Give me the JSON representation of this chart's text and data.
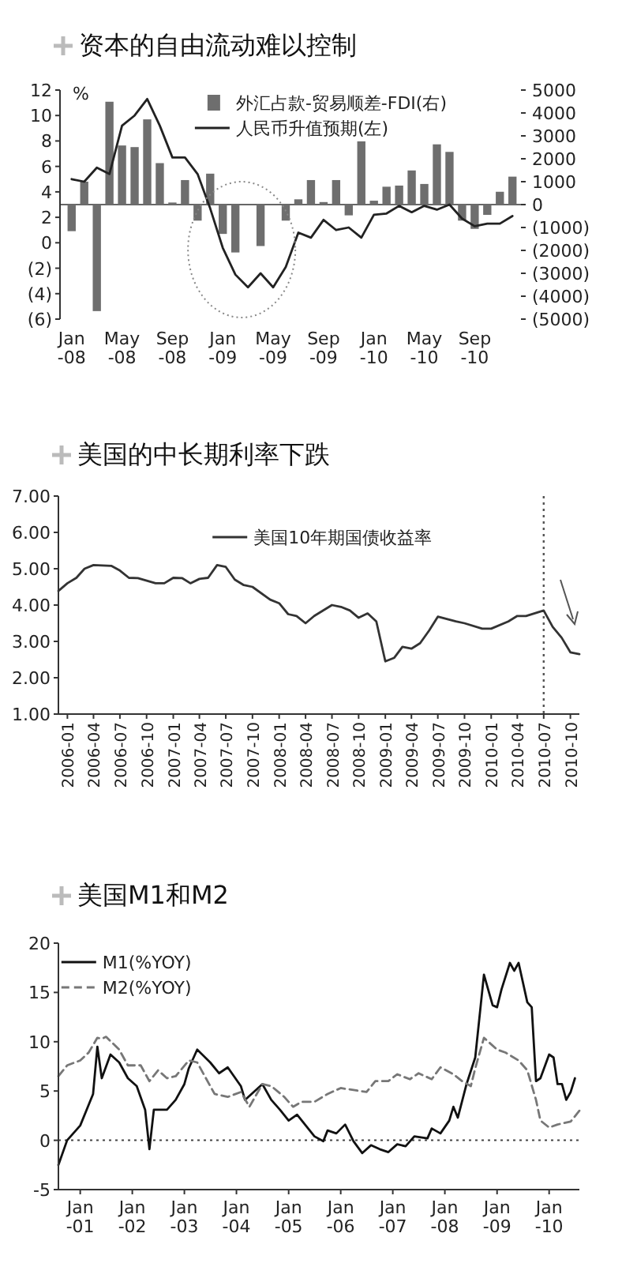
{
  "chart_data": [
    {
      "type": "bar",
      "title": "资本的自由流动难以控制",
      "ylabel": "%",
      "legend": "top",
      "categories": [
        "Jan\n-08",
        null,
        null,
        null,
        "May\n-08",
        null,
        null,
        null,
        "Sep\n-08",
        null,
        null,
        null,
        "Jan\n-09",
        null,
        null,
        null,
        "May\n-09",
        null,
        null,
        null,
        "Sep\n-09",
        null,
        null,
        null,
        "Jan\n-10",
        null,
        null,
        null,
        "May\n-10",
        null,
        null,
        null,
        "Sep\n-10",
        null,
        null,
        null
      ],
      "ylim": [
        -6,
        12
      ],
      "yticks": [
        {
          "value": -6,
          "label": "(6)"
        },
        {
          "value": -4,
          "label": "(4)"
        },
        {
          "value": -2,
          "label": "(2)"
        },
        0,
        2,
        4,
        6,
        8,
        10,
        12
      ],
      "y2lim": [
        -5000,
        5000
      ],
      "y2ticks": [
        {
          "value": -5000,
          "label": "(5000)"
        },
        {
          "value": -4000,
          "label": "(4000)"
        },
        {
          "value": -3000,
          "label": "(3000)"
        },
        {
          "value": -2000,
          "label": "(2000)"
        },
        {
          "value": -1000,
          "label": "(1000)"
        },
        0,
        1000,
        2000,
        3000,
        4000,
        5000
      ],
      "series": [
        {
          "name": "外汇占款-贸易顺差-FDI(右)",
          "axis": "y2",
          "color": "#6e6e6e",
          "values": [
            -1160,
            1000,
            -4650,
            4490,
            2580,
            2510,
            3720,
            1810,
            90,
            1070,
            -700,
            1350,
            -1280,
            -2090,
            null,
            -1810,
            null,
            -700,
            230,
            1070,
            110,
            1070,
            -470,
            2760,
            170,
            780,
            830,
            1490,
            900,
            2630,
            2300,
            -700,
            -1060,
            -450,
            560,
            1220
          ]
        },
        {
          "name": "人民币升值预期(左)",
          "type": "line",
          "color": "#222222",
          "values": [
            5.0,
            4.8,
            5.9,
            5.4,
            9.2,
            10.0,
            11.3,
            9.2,
            6.7,
            6.7,
            5.4,
            2.7,
            -0.4,
            -2.5,
            -3.5,
            -2.4,
            -3.5,
            -1.9,
            0.8,
            0.4,
            1.8,
            1.0,
            1.2,
            0.4,
            2.2,
            2.3,
            2.9,
            2.4,
            2.9,
            2.6,
            3.0,
            1.9,
            1.3,
            1.5,
            1.5,
            2.1
          ]
        }
      ]
    },
    {
      "type": "line",
      "title": "美国的中长期利率下跌",
      "legend": "top",
      "xlim": [
        "2005-12",
        "2010-11"
      ],
      "xticks": [
        "2006-01",
        "2006-04",
        "2006-07",
        "2006-10",
        "2007-01",
        "2007-04",
        "2007-07",
        "2007-10",
        "2008-01",
        "2008-04",
        "2008-07",
        "2008-10",
        "2009-01",
        "2009-04",
        "2009-07",
        "2009-10",
        "2010-01",
        "2010-04",
        "2010-07",
        "2010-10"
      ],
      "ylim": [
        1,
        7
      ],
      "yticks": [
        {
          "value": 1,
          "label": "1.00"
        },
        {
          "value": 2,
          "label": "2.00"
        },
        {
          "value": 3,
          "label": "3.00"
        },
        {
          "value": 4,
          "label": "4.00"
        },
        {
          "value": 5,
          "label": "5.00"
        },
        {
          "value": 6,
          "label": "6.00"
        },
        {
          "value": 7,
          "label": "7.00"
        }
      ],
      "ref_lines": [
        {
          "axis": "x",
          "value": "2010-07",
          "color": "#555555",
          "line_style": "dotted"
        }
      ],
      "series": [
        {
          "name": "美国10年期国债收益率",
          "color": "#333333",
          "x": [
            "2005-12",
            "2006-01",
            "2006-02",
            "2006-03",
            "2006-04",
            "2006-06",
            "2006-07",
            "2006-08",
            "2006-09",
            "2006-11",
            "2006-12",
            "2007-01",
            "2007-02",
            "2007-03",
            "2007-04",
            "2007-05",
            "2007-06",
            "2007-07",
            "2007-08",
            "2007-09",
            "2007-10",
            "2007-12",
            "2008-01",
            "2008-02",
            "2008-03",
            "2008-04",
            "2008-05",
            "2008-07",
            "2008-08",
            "2008-09",
            "2008-10",
            "2008-11",
            "2008-12",
            "2009-01",
            "2009-02",
            "2009-03",
            "2009-04",
            "2009-05",
            "2009-06",
            "2009-07",
            "2009-09",
            "2009-10",
            "2009-12",
            "2010-01",
            "2010-03",
            "2010-04",
            "2010-05",
            "2010-07",
            "2010-08",
            "2010-09",
            "2010-10",
            "2010-11"
          ],
          "values": [
            4.39,
            4.6,
            4.75,
            5.0,
            5.1,
            5.08,
            4.95,
            4.75,
            4.74,
            4.6,
            4.6,
            4.75,
            4.74,
            4.6,
            4.72,
            4.75,
            5.1,
            5.05,
            4.7,
            4.55,
            4.5,
            4.15,
            4.05,
            3.75,
            3.7,
            3.5,
            3.7,
            4.0,
            3.95,
            3.85,
            3.65,
            3.77,
            3.55,
            2.45,
            2.55,
            2.85,
            2.8,
            2.95,
            3.3,
            3.68,
            3.55,
            3.5,
            3.35,
            3.35,
            3.55,
            3.7,
            3.7,
            3.85,
            3.4,
            3.1,
            2.7,
            2.65
          ]
        }
      ]
    },
    {
      "type": "line",
      "title": "美国M1和M2",
      "legend": "top left",
      "xlim": [
        "2000-08",
        "2010-08"
      ],
      "xticks": [
        {
          "value": "2001-01",
          "label": "Jan\n-01"
        },
        {
          "value": "2002-01",
          "label": "Jan\n-02"
        },
        {
          "value": "2003-01",
          "label": "Jan\n-03"
        },
        {
          "value": "2004-01",
          "label": "Jan\n-04"
        },
        {
          "value": "2005-01",
          "label": "Jan\n-05"
        },
        {
          "value": "2006-01",
          "label": "Jan\n-06"
        },
        {
          "value": "2007-01",
          "label": "Jan\n-07"
        },
        {
          "value": "2008-01",
          "label": "Jan\n-08"
        },
        {
          "value": "2009-01",
          "label": "Jan\n-09"
        },
        {
          "value": "2010-01",
          "label": "Jan\n-10"
        }
      ],
      "ylim": [
        -5,
        20
      ],
      "yticks": [
        -5,
        0,
        5,
        10,
        15,
        20
      ],
      "ref_lines": [
        {
          "axis": "y",
          "value": 0,
          "color": "#444444",
          "line_style": "dotted"
        }
      ],
      "series": [
        {
          "name": "M1(%YOY)",
          "color": "#111111",
          "line_style": "solid",
          "x": [
            "2000-08",
            "2000-10",
            "2001-01",
            "2001-03",
            "2001-04",
            "2001-05",
            "2001-06",
            "2001-08",
            "2001-10",
            "2001-12",
            "2002-02",
            "2002-04",
            "2002-05",
            "2002-06",
            "2002-09",
            "2002-11",
            "2003-01",
            "2003-02",
            "2003-04",
            "2003-07",
            "2003-09",
            "2003-11",
            "2004-02",
            "2004-03",
            "2004-05",
            "2004-07",
            "2004-09",
            "2004-11",
            "2005-01",
            "2005-03",
            "2005-05",
            "2005-07",
            "2005-09",
            "2005-10",
            "2005-12",
            "2006-02",
            "2006-04",
            "2006-06",
            "2006-08",
            "2006-10",
            "2006-12",
            "2007-02",
            "2007-04",
            "2007-06",
            "2007-09",
            "2007-10",
            "2007-12",
            "2008-02",
            "2008-03",
            "2008-04",
            "2008-06",
            "2008-08",
            "2008-10",
            "2008-12",
            "2009-01",
            "2009-02",
            "2009-04",
            "2009-05",
            "2009-06",
            "2009-08",
            "2009-09",
            "2009-10",
            "2009-11",
            "2010-01",
            "2010-02",
            "2010-03",
            "2010-04",
            "2010-05",
            "2010-06",
            "2010-07"
          ],
          "values": [
            -2.5,
            0,
            1.5,
            3.6,
            4.7,
            9.5,
            6.3,
            8.7,
            7.9,
            6.3,
            5.5,
            3.1,
            -0.9,
            3.1,
            3.1,
            4.1,
            5.7,
            7.3,
            9.2,
            7.9,
            6.8,
            7.4,
            5.5,
            4.1,
            4.9,
            5.7,
            4.1,
            3.1,
            2.0,
            2.6,
            1.5,
            0.4,
            -0.1,
            1.0,
            0.7,
            1.6,
            -0.1,
            -1.3,
            -0.5,
            -0.9,
            -1.2,
            -0.4,
            -0.6,
            0.4,
            0.2,
            1.2,
            0.7,
            2.0,
            3.4,
            2.3,
            5.7,
            8.4,
            16.8,
            13.7,
            13.5,
            15.3,
            18.0,
            17.2,
            18.0,
            14.0,
            13.5,
            6.0,
            6.3,
            8.7,
            8.4,
            5.7,
            5.7,
            4.1,
            4.9,
            6.3
          ]
        },
        {
          "name": "M2(%YOY)",
          "color": "#777777",
          "line_style": "dashed",
          "x": [
            "2000-08",
            "2000-10",
            "2001-01",
            "2001-03",
            "2001-05",
            "2001-06",
            "2001-07",
            "2001-10",
            "2001-12",
            "2002-03",
            "2002-05",
            "2002-07",
            "2002-09",
            "2002-11",
            "2003-02",
            "2003-04",
            "2003-06",
            "2003-08",
            "2003-11",
            "2004-02",
            "2004-04",
            "2004-07",
            "2004-09",
            "2004-12",
            "2005-02",
            "2005-04",
            "2005-07",
            "2005-10",
            "2006-01",
            "2006-04",
            "2006-07",
            "2006-09",
            "2006-12",
            "2007-02",
            "2007-05",
            "2007-07",
            "2007-10",
            "2007-12",
            "2008-03",
            "2008-05",
            "2008-07",
            "2008-08",
            "2008-10",
            "2009-01",
            "2009-03",
            "2009-06",
            "2009-08",
            "2009-10",
            "2009-11",
            "2010-01",
            "2010-03",
            "2010-06",
            "2010-08"
          ],
          "values": [
            6.5,
            7.6,
            8.1,
            8.9,
            10.4,
            10.3,
            10.5,
            9.2,
            7.6,
            7.6,
            6.0,
            7.1,
            6.3,
            6.5,
            8.1,
            7.9,
            6.3,
            4.7,
            4.4,
            4.9,
            3.4,
            5.7,
            5.5,
            4.4,
            3.4,
            3.9,
            3.9,
            4.7,
            5.3,
            5.1,
            4.9,
            6.0,
            6.0,
            6.7,
            6.2,
            6.8,
            6.2,
            7.4,
            6.7,
            6.0,
            5.5,
            7.3,
            10.4,
            9.2,
            8.9,
            8.1,
            7.1,
            4.1,
            2.0,
            1.3,
            1.6,
            1.9,
            3.0
          ]
        }
      ]
    }
  ]
}
